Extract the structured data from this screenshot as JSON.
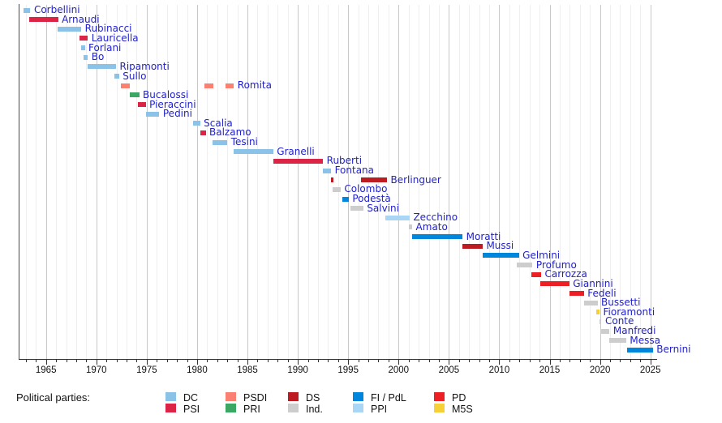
{
  "chart_data": {
    "type": "timeline",
    "x_axis": {
      "tick_years": [
        1965,
        1970,
        1975,
        1980,
        1985,
        1990,
        1995,
        2000,
        2005,
        2010,
        2015,
        2020,
        2025
      ],
      "minor_tick_step": 1,
      "year_start": 1963,
      "year_end": 2025
    },
    "parties": {
      "DC": "#8ac2e8",
      "PSI": "#dc2446",
      "PSDI": "#fa8072",
      "PRI": "#3aa862",
      "DS": "#bc1b21",
      "Ind.": "#cdcdcd",
      "FI / PdL": "#0087dc",
      "PPI": "#a8d6f4",
      "PD": "#ec2024",
      "M5S": "#f7d038"
    },
    "legend": {
      "heading": "Political parties:",
      "columns": [
        [
          "DC",
          "PSI"
        ],
        [
          "PSDI",
          "PRI"
        ],
        [
          "DS",
          "Ind."
        ],
        [
          "FI / PdL",
          "PPI"
        ],
        [
          "PD",
          "M5S"
        ]
      ]
    },
    "ministers": [
      {
        "name": "Corbellini",
        "party": "DC",
        "terms": [
          [
            1962.8,
            1963.45
          ]
        ]
      },
      {
        "name": "Arnaudi",
        "party": "PSI",
        "terms": [
          [
            1963.35,
            1966.2
          ]
        ]
      },
      {
        "name": "Rubinacci",
        "party": "DC",
        "terms": [
          [
            1966.15,
            1968.5
          ]
        ]
      },
      {
        "name": "Lauricella",
        "party": "PSI",
        "terms": [
          [
            1968.3,
            1969.15
          ]
        ]
      },
      {
        "name": "Forlani",
        "party": "DC",
        "terms": [
          [
            1968.5,
            1968.85
          ]
        ]
      },
      {
        "name": "Bo",
        "party": "DC",
        "terms": [
          [
            1968.75,
            1969.15
          ]
        ]
      },
      {
        "name": "Ripamonti",
        "party": "DC",
        "terms": [
          [
            1969.15,
            1971.95
          ]
        ]
      },
      {
        "name": "Sullo",
        "party": "DC",
        "terms": [
          [
            1971.8,
            1972.25
          ]
        ]
      },
      {
        "name": "Romita",
        "party": "PSDI",
        "terms": [
          [
            1972.4,
            1973.3
          ],
          [
            1980.7,
            1981.6
          ],
          [
            1982.85,
            1983.65
          ]
        ]
      },
      {
        "name": "Bucalossi",
        "party": "PRI",
        "terms": [
          [
            1973.3,
            1974.25
          ]
        ]
      },
      {
        "name": "Pieraccini",
        "party": "PSI",
        "terms": [
          [
            1974.1,
            1974.9
          ]
        ]
      },
      {
        "name": "Pedini",
        "party": "DC",
        "terms": [
          [
            1974.9,
            1976.25
          ]
        ]
      },
      {
        "name": "Scalia",
        "party": "DC",
        "terms": [
          [
            1979.6,
            1980.3
          ]
        ]
      },
      {
        "name": "Balzamo",
        "party": "PSI",
        "terms": [
          [
            1980.3,
            1980.85
          ]
        ]
      },
      {
        "name": "Tesini",
        "party": "DC",
        "terms": [
          [
            1981.5,
            1983.0
          ]
        ]
      },
      {
        "name": "Granelli",
        "party": "DC",
        "terms": [
          [
            1983.65,
            1987.55
          ]
        ]
      },
      {
        "name": "Ruberti",
        "party": "PSI",
        "terms": [
          [
            1987.55,
            1992.5
          ]
        ]
      },
      {
        "name": "Fontana",
        "party": "DC",
        "terms": [
          [
            1992.5,
            1993.3
          ]
        ]
      },
      {
        "name": "Berlinguer",
        "party": "DS",
        "terms": [
          [
            1993.3,
            1993.55
          ],
          [
            1996.25,
            1998.85
          ]
        ]
      },
      {
        "name": "Colombo",
        "party": "Ind.",
        "terms": [
          [
            1993.45,
            1994.25
          ]
        ]
      },
      {
        "name": "Podestà",
        "party": "FI / PdL",
        "terms": [
          [
            1994.4,
            1995.05
          ]
        ]
      },
      {
        "name": "Salvini",
        "party": "Ind.",
        "terms": [
          [
            1995.2,
            1996.5
          ]
        ]
      },
      {
        "name": "Zecchino",
        "party": "PPI",
        "terms": [
          [
            1998.7,
            2001.1
          ]
        ]
      },
      {
        "name": "Amato",
        "party": "Ind.",
        "terms": [
          [
            2001.0,
            2001.35
          ]
        ]
      },
      {
        "name": "Moratti",
        "party": "FI / PdL",
        "terms": [
          [
            2001.35,
            2006.35
          ]
        ]
      },
      {
        "name": "Mussi",
        "party": "DS",
        "terms": [
          [
            2006.35,
            2008.35
          ]
        ]
      },
      {
        "name": "Gelmini",
        "party": "FI / PdL",
        "terms": [
          [
            2008.35,
            2011.95
          ]
        ]
      },
      {
        "name": "Profumo",
        "party": "Ind.",
        "terms": [
          [
            2011.7,
            2013.3
          ]
        ]
      },
      {
        "name": "Carrozza",
        "party": "PD",
        "terms": [
          [
            2013.2,
            2014.15
          ]
        ]
      },
      {
        "name": "Giannini",
        "party": "PD",
        "terms": [
          [
            2014.1,
            2016.95
          ]
        ]
      },
      {
        "name": "Fedeli",
        "party": "PD",
        "terms": [
          [
            2016.95,
            2018.4
          ]
        ]
      },
      {
        "name": "Bussetti",
        "party": "Ind.",
        "terms": [
          [
            2018.4,
            2019.75
          ]
        ]
      },
      {
        "name": "Fioramonti",
        "party": "M5S",
        "terms": [
          [
            2019.65,
            2019.95
          ]
        ]
      },
      {
        "name": "Conte",
        "party": "Ind.",
        "terms": [
          [
            2019.95,
            2020.15
          ]
        ]
      },
      {
        "name": "Manfredi",
        "party": "Ind.",
        "terms": [
          [
            2020.0,
            2020.95
          ]
        ]
      },
      {
        "name": "Messa",
        "party": "Ind.",
        "terms": [
          [
            2020.95,
            2022.6
          ]
        ]
      },
      {
        "name": "Bernini",
        "party": "FI / PdL",
        "terms": [
          [
            2022.65,
            2025.25
          ]
        ]
      }
    ]
  }
}
